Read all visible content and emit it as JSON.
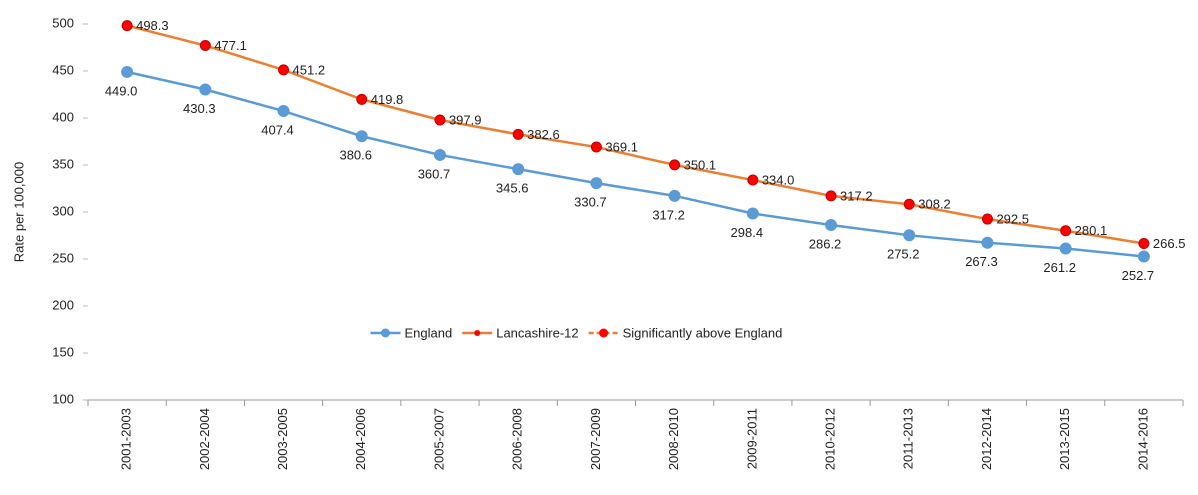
{
  "chart_data": {
    "type": "line",
    "y_label": "Rate per 100,000",
    "categories": [
      "2001-2003",
      "2002-2004",
      "2003-2005",
      "2004-2006",
      "2005-2007",
      "2006-2008",
      "2007-2009",
      "2008-2010",
      "2009-2011",
      "2010-2012",
      "2011-2013",
      "2012-2014",
      "2013-2015",
      "2014-2016"
    ],
    "series": [
      {
        "name": "England",
        "color": "#5B9BD5",
        "style": "line-markers",
        "label_position": "below",
        "values": [
          449.0,
          430.3,
          407.4,
          380.6,
          360.7,
          345.6,
          330.7,
          317.2,
          298.4,
          286.2,
          275.2,
          267.3,
          261.2,
          252.7
        ],
        "value_labels": [
          "449.0",
          "430.3",
          "407.4",
          "380.6",
          "360.7",
          "345.6",
          "330.7",
          "317.2",
          "298.4",
          "286.2",
          "275.2",
          "267.3",
          "261.2",
          "252.7"
        ]
      },
      {
        "name": "Lancashire-12",
        "color": "#ED7D31",
        "style": "line",
        "label_position": "right",
        "values": [
          498.3,
          477.1,
          451.2,
          419.8,
          397.9,
          382.6,
          369.1,
          350.1,
          334.0,
          317.2,
          308.2,
          292.5,
          280.1,
          266.5
        ],
        "value_labels": [
          "498.3",
          "477.1",
          "451.2",
          "419.8",
          "397.9",
          "382.6",
          "369.1",
          "350.1",
          "334.0",
          "317.2",
          "308.2",
          "292.5",
          "280.1",
          "266.5"
        ]
      },
      {
        "name": "Significantly above England",
        "color": "#FF0000",
        "style": "markers",
        "values": [
          498.3,
          477.1,
          451.2,
          419.8,
          397.9,
          382.6,
          369.1,
          350.1,
          334.0,
          317.2,
          308.2,
          292.5,
          280.1,
          266.5
        ]
      }
    ],
    "ylim": [
      100,
      500
    ],
    "yticks": [
      100,
      150,
      200,
      250,
      300,
      350,
      400,
      450,
      500
    ],
    "grid": false,
    "legend": "center"
  }
}
